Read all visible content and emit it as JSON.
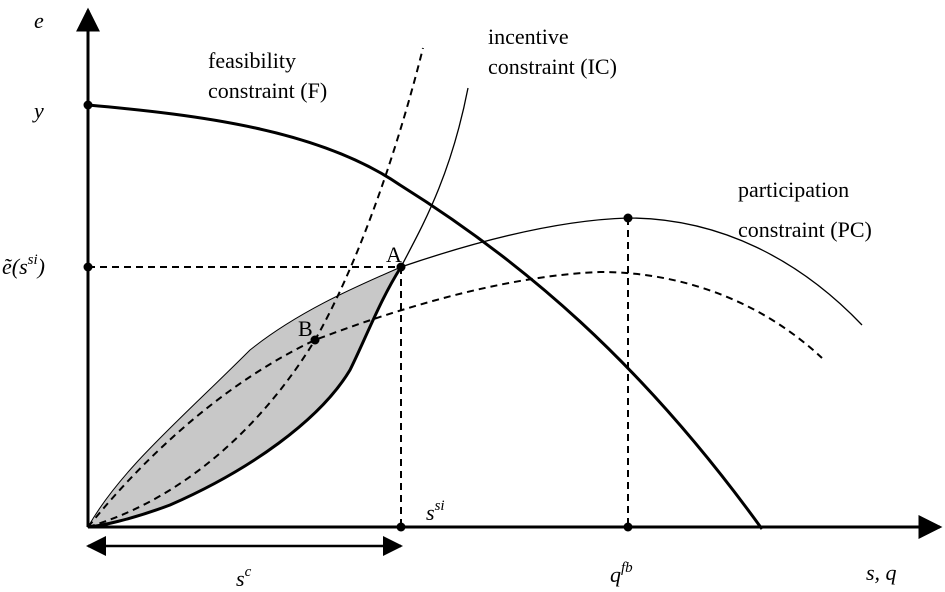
{
  "axes": {
    "y_axis_label": "e",
    "x_axis_label": "s, q",
    "y_tick_y": "y",
    "y_tick_e_prefix": "ẽ(s",
    "y_tick_e_sup": "si",
    "y_tick_e_suffix": ")"
  },
  "x_ticks": {
    "s_si_base": "s",
    "s_si_sup": "si",
    "s_c_base": "s",
    "s_c_sup": "c",
    "q_fb_base": "q",
    "q_fb_sup": "fb"
  },
  "curve_labels": {
    "feasibility_line1": "feasibility",
    "feasibility_line2": "constraint (F)",
    "incentive_line1": "incentive",
    "incentive_line2": "constraint (IC)",
    "participation_line1": "participation",
    "participation_line2": "constraint (PC)"
  },
  "points": {
    "a_label": "A",
    "b_label": "B"
  },
  "colors": {
    "line": "#000000",
    "shaded_region": "#c8c8c8",
    "background": "#ffffff"
  }
}
